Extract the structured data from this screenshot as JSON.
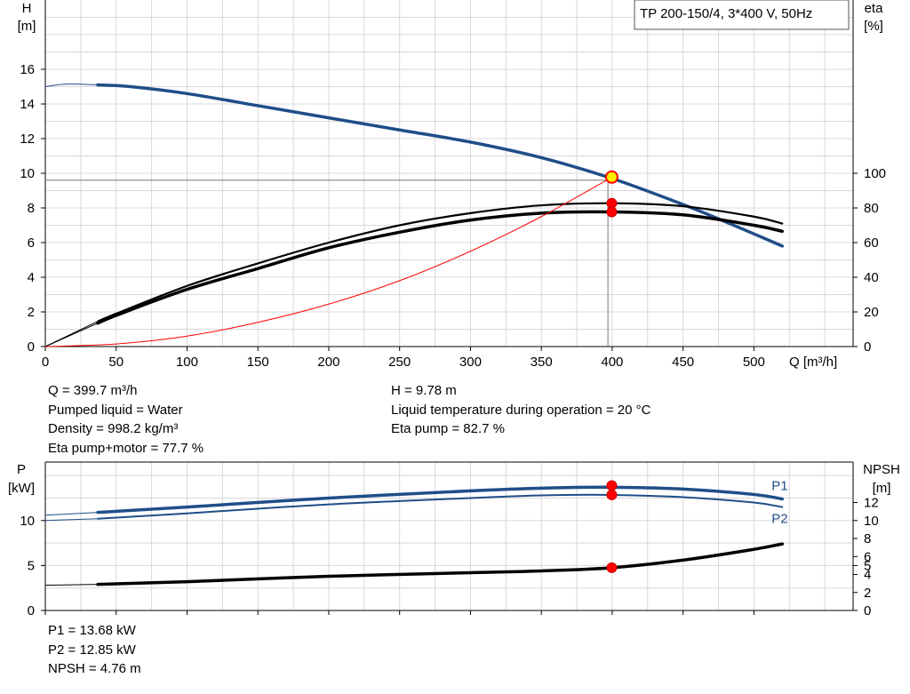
{
  "chart_data": [
    {
      "type": "line",
      "legend_box": "TP 200-150/4, 3*400 V, 50Hz",
      "left_axis": {
        "label_top": "H",
        "label_bottom": "[m]",
        "ticks": [
          0,
          2,
          4,
          6,
          8,
          10,
          12,
          14,
          16
        ],
        "range": [
          0,
          20
        ]
      },
      "right_axis": {
        "label_top": "eta",
        "label_bottom": "[%]",
        "ticks": [
          0,
          20,
          40,
          60,
          80,
          100
        ],
        "range": [
          0,
          200
        ]
      },
      "x_axis": {
        "label": "Q [m³/h]",
        "ticks": [
          0,
          50,
          100,
          150,
          200,
          250,
          300,
          350,
          400,
          450,
          500
        ],
        "range": [
          0,
          570
        ]
      },
      "grid": true,
      "operating_point": {
        "Q": 399.7,
        "H": 9.78,
        "eta_pump": 82.7,
        "eta_total": 77.7
      },
      "series": [
        {
          "key": "H",
          "color": "#1f4e88",
          "x": [
            37,
            60,
            100,
            150,
            200,
            250,
            300,
            350,
            400,
            450,
            480,
            520
          ],
          "y": [
            15.1,
            15.0,
            14.6,
            13.9,
            13.2,
            12.5,
            11.8,
            10.9,
            9.7,
            8.2,
            7.2,
            5.8
          ],
          "extension": {
            "x": [
              0,
              15,
              37
            ],
            "y": [
              15.0,
              15.15,
              15.1
            ]
          }
        },
        {
          "key": "eta_pump",
          "color": "#000000",
          "x": [
            37,
            50,
            100,
            150,
            200,
            250,
            300,
            350,
            400,
            450,
            500,
            520
          ],
          "y": [
            14.5,
            19,
            35,
            48,
            60,
            70,
            77,
            81.5,
            82.7,
            81,
            75,
            71
          ],
          "extension": {
            "x": [
              0,
              37
            ],
            "y": [
              0,
              14.5
            ]
          }
        },
        {
          "key": "eta_total",
          "color": "#000000",
          "x": [
            37,
            50,
            100,
            150,
            200,
            250,
            300,
            350,
            400,
            450,
            500,
            520
          ],
          "y": [
            13.5,
            18,
            33,
            45,
            57,
            66,
            73,
            77,
            77.7,
            76,
            70,
            66.5
          ],
          "extension": {
            "x": [
              0,
              37
            ],
            "y": [
              0,
              13.5
            ]
          }
        },
        {
          "key": "system_curve",
          "color": "#ff0000",
          "x": [
            0,
            50,
            100,
            150,
            200,
            250,
            300,
            350,
            400
          ],
          "y": [
            0,
            0.15,
            0.6,
            1.4,
            2.45,
            3.8,
            5.5,
            7.5,
            9.78
          ]
        }
      ]
    },
    {
      "type": "line",
      "left_axis": {
        "label_top": "P",
        "label_bottom": "[kW]",
        "ticks": [
          0,
          5,
          10
        ],
        "range": [
          0,
          16.5
        ]
      },
      "right_axis": {
        "label_top": "NPSH",
        "label_bottom": "[m]",
        "ticks": [
          0,
          2,
          4,
          5,
          6,
          8,
          10,
          12
        ],
        "range": [
          0,
          16.5
        ]
      },
      "x_axis": {
        "range": [
          0,
          570
        ]
      },
      "grid": true,
      "operating_point": {
        "Q": 399.7,
        "P1": 13.68,
        "P2": 12.85,
        "NPSH": 4.76
      },
      "series": [
        {
          "key": "P1",
          "name": "P1",
          "color": "#1f4e88",
          "x": [
            37,
            100,
            200,
            300,
            350,
            400,
            450,
            500,
            520
          ],
          "y": [
            10.9,
            11.5,
            12.5,
            13.3,
            13.6,
            13.7,
            13.5,
            12.9,
            12.4
          ],
          "extension": {
            "x": [
              0,
              37
            ],
            "y": [
              10.6,
              10.9
            ]
          }
        },
        {
          "key": "P2",
          "name": "P2",
          "color": "#1f4e88",
          "x": [
            37,
            100,
            200,
            300,
            350,
            400,
            450,
            500,
            520
          ],
          "y": [
            10.2,
            10.8,
            11.8,
            12.5,
            12.8,
            12.85,
            12.6,
            12.0,
            11.5
          ],
          "extension": {
            "x": [
              0,
              37
            ],
            "y": [
              10.0,
              10.2
            ]
          }
        },
        {
          "key": "NPSH",
          "color": "#000000",
          "x": [
            37,
            100,
            200,
            300,
            350,
            400,
            450,
            500,
            520
          ],
          "y": [
            2.9,
            3.2,
            3.8,
            4.2,
            4.4,
            4.76,
            5.6,
            6.8,
            7.4
          ],
          "extension": {
            "x": [
              0,
              37
            ],
            "y": [
              2.8,
              2.9
            ]
          }
        }
      ]
    }
  ],
  "info_top": {
    "left": [
      "Q = 399.7 m³/h",
      "Pumped liquid = Water",
      "Density = 998.2 kg/m³",
      "Eta pump+motor = 77.7 %"
    ],
    "right": [
      "H = 9.78 m",
      "Liquid temperature during operation = 20 °C",
      "Eta pump = 82.7 %"
    ]
  },
  "info_bottom": [
    "P1 = 13.68 kW",
    "P2 = 12.85 kW",
    "NPSH = 4.76 m"
  ]
}
